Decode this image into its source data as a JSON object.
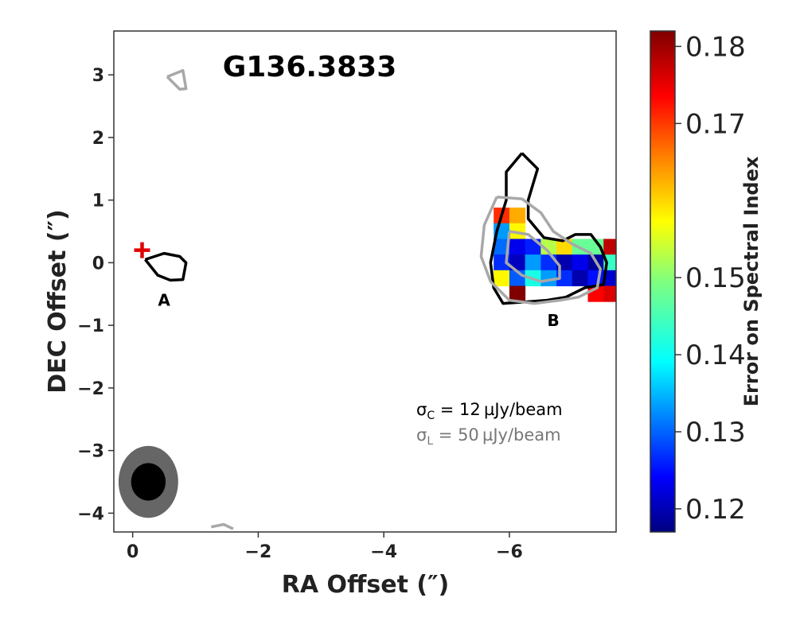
{
  "chart_data": {
    "type": "heatmap",
    "title": "G136.3833",
    "xlabel": "RA Offset (″)",
    "ylabel": "DEC Offset (″)",
    "xlim": [
      0.3,
      -7.7
    ],
    "ylim": [
      -4.3,
      3.7
    ],
    "x_ticks": [
      0,
      -2,
      -4,
      -6
    ],
    "x_tick_labels": [
      "0",
      "−2",
      "−4",
      "−6"
    ],
    "y_ticks": [
      3,
      2,
      1,
      0,
      -1,
      -2,
      -3,
      -4
    ],
    "y_tick_labels": [
      "3",
      "2",
      "1",
      "0",
      "−1",
      "−2",
      "−3",
      "−4"
    ],
    "grid": false,
    "colorbar": {
      "label": "Error on Spectral Index",
      "range": [
        0.117,
        0.182
      ],
      "ticks": [
        0.12,
        0.13,
        0.14,
        0.15,
        0.17,
        0.18
      ],
      "tick_labels": [
        "0.12",
        "0.13",
        "0.14",
        "0.15",
        "0.17",
        "0.18"
      ],
      "colormap": "jet"
    },
    "pixel_grid": {
      "x_start": -5.75,
      "y_start": 0.88,
      "step": 0.25,
      "values": [
        [
          0.171,
          0.163,
          null,
          null,
          null,
          null,
          null,
          null,
          null
        ],
        [
          0.135,
          0.158,
          null,
          null,
          null,
          null,
          null,
          null,
          null
        ],
        [
          0.132,
          0.124,
          0.127,
          0.153,
          0.16,
          0.148,
          0.148,
          0.178,
          null
        ],
        [
          0.128,
          0.121,
          0.135,
          0.128,
          0.12,
          0.124,
          0.119,
          0.145,
          null
        ],
        [
          0.158,
          0.131,
          0.143,
          0.135,
          0.128,
          0.12,
          0.126,
          0.122,
          null
        ],
        [
          null,
          0.182,
          null,
          null,
          null,
          null,
          0.174,
          0.176,
          null
        ]
      ]
    },
    "contours": [
      {
        "series": "continuum",
        "color": "#000000",
        "points": [
          [
            -0.2,
            0.05
          ],
          [
            -0.5,
            0.15
          ],
          [
            -0.75,
            0.1
          ],
          [
            -0.85,
            0.0
          ],
          [
            -0.8,
            -0.27
          ],
          [
            -0.6,
            -0.28
          ],
          [
            -0.4,
            -0.2
          ],
          [
            -0.2,
            0.05
          ]
        ]
      },
      {
        "series": "continuum",
        "color": "#000000",
        "points": [
          [
            -6.2,
            1.75
          ],
          [
            -6.45,
            1.5
          ],
          [
            -6.3,
            1.0
          ],
          [
            -6.3,
            0.7
          ],
          [
            -6.55,
            0.4
          ],
          [
            -6.85,
            0.35
          ],
          [
            -7.05,
            0.45
          ],
          [
            -7.3,
            0.45
          ],
          [
            -7.45,
            0.25
          ],
          [
            -7.55,
            0.0
          ],
          [
            -7.5,
            -0.35
          ],
          [
            -7.2,
            -0.4
          ],
          [
            -6.9,
            -0.55
          ],
          [
            -6.6,
            -0.6
          ],
          [
            -6.2,
            -0.63
          ],
          [
            -5.9,
            -0.65
          ],
          [
            -5.75,
            -0.4
          ],
          [
            -5.7,
            0.0
          ],
          [
            -5.8,
            0.5
          ],
          [
            -5.95,
            1.0
          ],
          [
            -5.95,
            1.45
          ],
          [
            -6.2,
            1.75
          ]
        ]
      },
      {
        "series": "line",
        "color": "#a8a8a8",
        "points": [
          [
            -5.8,
            1.05
          ],
          [
            -6.2,
            1.02
          ],
          [
            -6.5,
            0.8
          ],
          [
            -6.7,
            0.5
          ],
          [
            -7.0,
            0.3
          ],
          [
            -7.3,
            0.15
          ],
          [
            -7.45,
            -0.1
          ],
          [
            -7.4,
            -0.4
          ],
          [
            -7.1,
            -0.55
          ],
          [
            -6.8,
            -0.6
          ],
          [
            -6.4,
            -0.65
          ],
          [
            -6.0,
            -0.6
          ],
          [
            -5.7,
            -0.3
          ],
          [
            -5.55,
            0.1
          ],
          [
            -5.6,
            0.6
          ],
          [
            -5.8,
            1.05
          ]
        ]
      },
      {
        "series": "line",
        "color": "#a8a8a8",
        "points": [
          [
            -6.0,
            0.5
          ],
          [
            -6.3,
            0.45
          ],
          [
            -6.6,
            0.2
          ],
          [
            -6.8,
            -0.05
          ],
          [
            -6.8,
            -0.25
          ],
          [
            -6.5,
            -0.3
          ],
          [
            -6.2,
            -0.2
          ],
          [
            -5.95,
            0.0
          ],
          [
            -6.0,
            0.5
          ]
        ]
      },
      {
        "series": "line",
        "color": "#a8a8a8",
        "points": [
          [
            -0.55,
            2.97
          ],
          [
            -0.8,
            3.07
          ],
          [
            -0.85,
            2.78
          ],
          [
            -0.75,
            2.77
          ],
          [
            -0.55,
            2.97
          ]
        ]
      },
      {
        "series": "line",
        "color": "#a8a8a8",
        "points": [
          [
            -1.25,
            -4.22
          ],
          [
            -1.45,
            -4.18
          ],
          [
            -1.6,
            -4.25
          ]
        ]
      }
    ],
    "annotations": [
      {
        "text": "A",
        "x": -0.5,
        "y": -0.6
      },
      {
        "text": "B",
        "x": -6.7,
        "y": -0.92
      }
    ],
    "marker": {
      "type": "plus",
      "color": "#e00000",
      "x": -0.15,
      "y": 0.2
    },
    "beam": {
      "x": -0.25,
      "y": -3.5,
      "outer_major": 1.15,
      "outer_minor": 0.95,
      "inner_major": 0.65,
      "inner_minor": 0.5
    },
    "noise_legend": [
      {
        "sym": "σ",
        "sub": "C",
        "rest": " = 12 µJy/beam",
        "color": "#000000"
      },
      {
        "sym": "σ",
        "sub": "L",
        "rest": " = 50 µJy/beam",
        "color": "#777777"
      }
    ]
  }
}
